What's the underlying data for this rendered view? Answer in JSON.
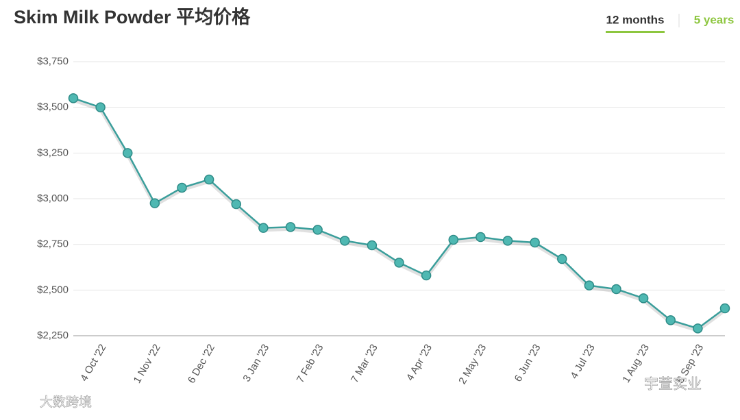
{
  "tabs": [
    "12 months",
    "5 years"
  ],
  "watermarks": [
    "大数跨境",
    "宇萱实业"
  ],
  "chart_data": {
    "type": "line",
    "title": "Skim Milk Powder 平均价格",
    "categories": [
      null,
      "4 Oct '22",
      null,
      "1 Nov '22",
      null,
      "6 Dec '22",
      null,
      "3 Jan '23",
      null,
      "7 Feb '23",
      null,
      "7 Mar '23",
      null,
      "4 Apr '23",
      null,
      "2 May '23",
      null,
      "6 Jun '23",
      null,
      "4 Jul '23",
      null,
      "1 Aug '23",
      null,
      "5 Sep '23",
      null
    ],
    "series": [
      {
        "name": "Skim Milk Powder",
        "color": "#3a9e9b",
        "values": [
          3550,
          3500,
          3250,
          2975,
          3060,
          3105,
          2970,
          2840,
          2845,
          2830,
          2770,
          2745,
          2650,
          2580,
          2775,
          2790,
          2770,
          2760,
          2670,
          2525,
          2505,
          2455,
          2335,
          2290,
          2400
        ]
      }
    ],
    "ylim": [
      2250,
      3750
    ],
    "yticks": [
      {
        "value": 2250,
        "label": "$2,250"
      },
      {
        "value": 2500,
        "label": "$2,500"
      },
      {
        "value": 2750,
        "label": "$2,750"
      },
      {
        "value": 3000,
        "label": "$3,000"
      },
      {
        "value": 3250,
        "label": "$3,250"
      },
      {
        "value": 3500,
        "label": "$3,500"
      },
      {
        "value": 3750,
        "label": "$3,750"
      }
    ],
    "grid": true
  }
}
